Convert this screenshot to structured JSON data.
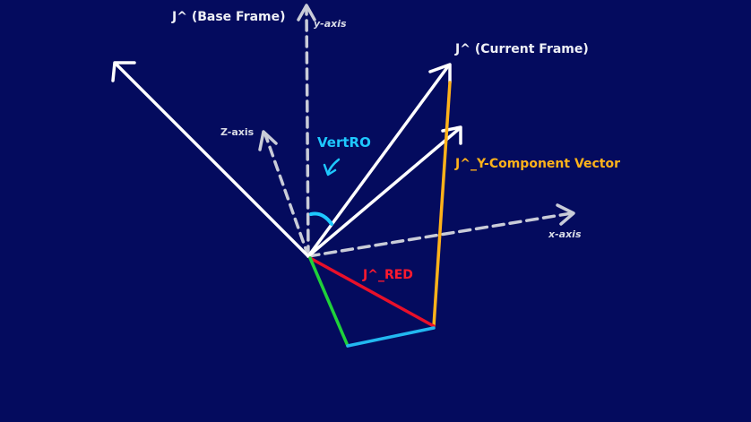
{
  "labels": {
    "base_frame": "J^ (Base Frame)",
    "y_axis": "y-axis",
    "current_frame": "J^ (Current Frame)",
    "z_axis": "Z-axis",
    "vert_ro": "VertRO",
    "y_component": "J^_Y-Component Vector",
    "x_axis": "x-axis",
    "red_vector": "J^_RED"
  },
  "colors": {
    "background": "#040b5e",
    "white_vector": "#ffffff",
    "axis_dashed": "#c9ccd8",
    "cyan": "#1ec8ff",
    "orange": "#ffb21a",
    "red": "#e8102a",
    "green": "#1fd13a",
    "light_blue": "#22b8f0"
  }
}
